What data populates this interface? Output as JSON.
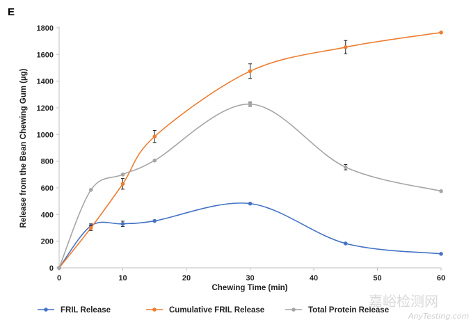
{
  "panel_label": "E",
  "watermark": {
    "text": "嘉峪检测网",
    "subtext": "AnyTesting.com"
  },
  "chart_data": {
    "type": "line",
    "title": "",
    "xlabel": "Chewing Time (min)",
    "ylabel": "Release from the Bean Chewing Gum (µg)",
    "xlim": [
      0,
      60
    ],
    "ylim": [
      0,
      1800
    ],
    "xticks": [
      0,
      10,
      20,
      30,
      40,
      50,
      60
    ],
    "yticks": [
      0,
      200,
      400,
      600,
      800,
      1000,
      1200,
      1400,
      1600,
      1800
    ],
    "legend_position": "bottom",
    "series": [
      {
        "name": "FRIL Release",
        "color": "#4472c4",
        "x": [
          0,
          5,
          10,
          15,
          30,
          45,
          60
        ],
        "y": [
          0,
          315,
          330,
          352,
          482,
          183,
          105
        ],
        "error": [
          0,
          15,
          20,
          0,
          0,
          0,
          0
        ]
      },
      {
        "name": "Cumulative FRIL Release",
        "color": "#ed7d31",
        "x": [
          0,
          5,
          10,
          15,
          30,
          45,
          60
        ],
        "y": [
          0,
          300,
          630,
          985,
          1475,
          1655,
          1765
        ],
        "error": [
          0,
          20,
          40,
          45,
          55,
          50,
          0
        ]
      },
      {
        "name": "Total Protein Release",
        "color": "#a5a5a5",
        "x": [
          0,
          5,
          10,
          15,
          30,
          45,
          60
        ],
        "y": [
          0,
          585,
          700,
          805,
          1228,
          755,
          575
        ],
        "error": [
          0,
          0,
          0,
          0,
          15,
          20,
          0
        ]
      }
    ]
  }
}
